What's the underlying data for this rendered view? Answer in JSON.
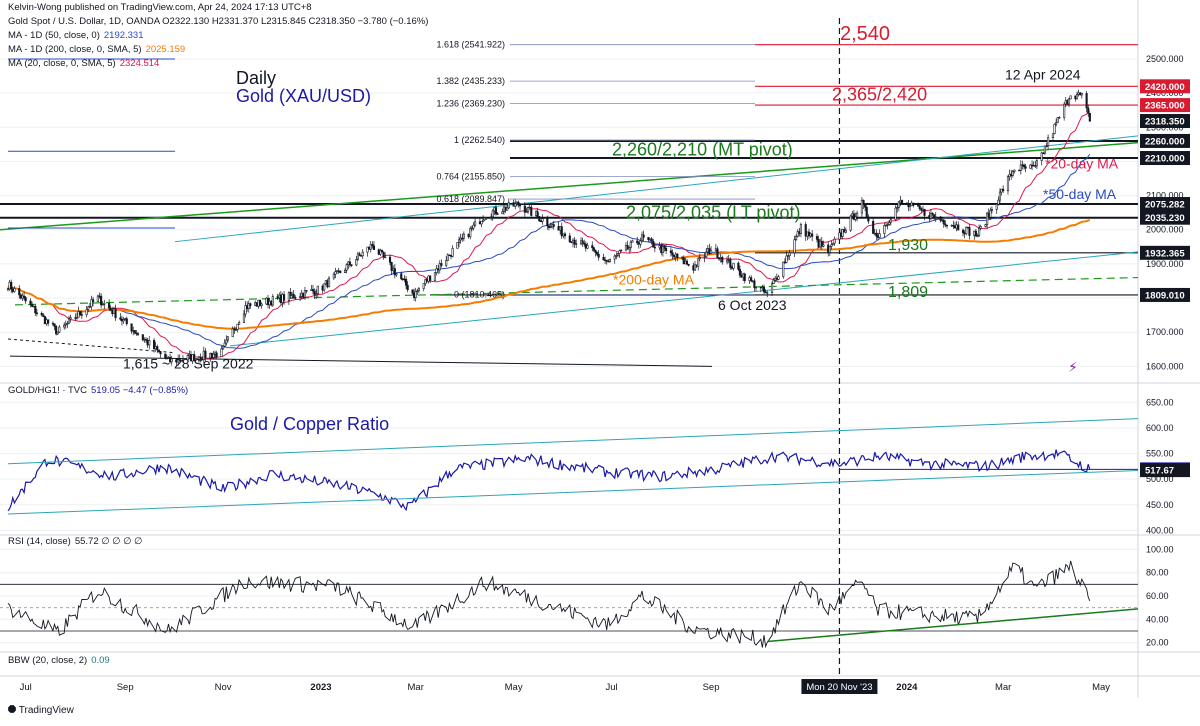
{
  "header": {
    "published": "Kelvin-Wong published on TradingView.com, Apr 24, 2024 17:13 UTC+8",
    "ohlc": "Gold Spot / U.S. Dollar, 1D, OANDA  O2322.130  H2331.370  L2315.845  C2318.350  −3.780 (−0.16%)",
    "ma50_label": "MA - 1D (50, close, 0)",
    "ma50_value": "2192.331",
    "ma200_label": "MA - 1D (200, close, 0, SMA, 5)",
    "ma200_value": "2025.159",
    "ma20_label": "MA (20, close, 0, SMA, 5)",
    "ma20_value": "2324.514",
    "ratio_label": "GOLD/HG1! · TVC",
    "ratio_value": "519.05  −4.47 (−0.85%)",
    "rsi_label": "RSI (14, close)",
    "rsi_value": "55.72  ∅ ∅ ∅ ∅",
    "bbw_label": "BBW (20, close, 2)",
    "bbw_value": "0.09",
    "footer": "TradingView"
  },
  "colors": {
    "candle": "#131722",
    "ma20": "#e0194a",
    "ma50": "#2a4bbd",
    "ma200": "#f57c00",
    "support": "#1b7a1b",
    "resistance": "#d81b31",
    "ratio": "#1a1aa6",
    "channel": "#2aa6b8",
    "rsi": "#131722",
    "price_tag": "#131722"
  },
  "chart_data": [
    {
      "type": "candlestick",
      "title": "Daily",
      "subtitle": "Gold (XAU/USD)",
      "ylim": [
        1560,
        2620
      ],
      "y_ticks": [
        1600,
        1700,
        1800,
        1900,
        2000,
        2100,
        2200,
        2300,
        2400,
        2500
      ],
      "y_tick_labels": [
        "1600.000",
        "1700.000",
        "1800.000",
        "1900.000",
        "2000.000",
        "2100.000",
        "2200.000",
        "2300.000",
        "2400.000",
        "2500.000"
      ],
      "x_ticks": [
        "Jul",
        "Sep",
        "Nov",
        "2023",
        "Mar",
        "May",
        "Jul",
        "Sep",
        "Mon 20 Nov '23",
        "2024",
        "Mar",
        "May"
      ],
      "anchor_points": [
        {
          "date": "2022-06-20",
          "close": 1840
        },
        {
          "date": "2022-07-21",
          "close": 1700
        },
        {
          "date": "2022-08-15",
          "close": 1800
        },
        {
          "date": "2022-09-28",
          "close": 1615
        },
        {
          "date": "2022-10-31",
          "close": 1640
        },
        {
          "date": "2022-11-15",
          "close": 1775
        },
        {
          "date": "2022-12-31",
          "close": 1825
        },
        {
          "date": "2023-02-02",
          "close": 1955
        },
        {
          "date": "2023-02-28",
          "close": 1810
        },
        {
          "date": "2023-04-13",
          "close": 2045
        },
        {
          "date": "2023-05-04",
          "close": 2075
        },
        {
          "date": "2023-06-29",
          "close": 1905
        },
        {
          "date": "2023-07-20",
          "close": 1975
        },
        {
          "date": "2023-08-21",
          "close": 1890
        },
        {
          "date": "2023-09-01",
          "close": 1945
        },
        {
          "date": "2023-10-06",
          "close": 1809
        },
        {
          "date": "2023-10-27",
          "close": 2005
        },
        {
          "date": "2023-11-13",
          "close": 1935
        },
        {
          "date": "2023-12-04",
          "close": 2075
        },
        {
          "date": "2023-12-13",
          "close": 1980
        },
        {
          "date": "2023-12-28",
          "close": 2080
        },
        {
          "date": "2024-02-14",
          "close": 1985
        },
        {
          "date": "2024-03-08",
          "close": 2180
        },
        {
          "date": "2024-03-21",
          "close": 2180
        },
        {
          "date": "2024-04-12",
          "close": 2400
        },
        {
          "date": "2024-04-19",
          "close": 2390
        },
        {
          "date": "2024-04-24",
          "close": 2318.35
        }
      ],
      "price_tags": [
        {
          "value": 2420,
          "label": "2420.000",
          "color": "#d81b31"
        },
        {
          "value": 2365,
          "label": "2365.000",
          "color": "#d81b31"
        },
        {
          "value": 2318.35,
          "label": "2318.350",
          "color": "#131722"
        },
        {
          "value": 2260,
          "label": "2260.000",
          "color": "#131722"
        },
        {
          "value": 2210,
          "label": "2210.000",
          "color": "#131722"
        },
        {
          "value": 2075.282,
          "label": "2075.282",
          "color": "#131722"
        },
        {
          "value": 2035.23,
          "label": "2035.230",
          "color": "#131722"
        },
        {
          "value": 1932.365,
          "label": "1932.365",
          "color": "#131722"
        },
        {
          "value": 1809.01,
          "label": "1809.010",
          "color": "#131722"
        }
      ],
      "fib_levels": [
        {
          "value": 2541.922,
          "label": "1.618 (2541.922)"
        },
        {
          "value": 2435.233,
          "label": "1.382 (2435.233)"
        },
        {
          "value": 2369.23,
          "label": "1.236 (2369.230)"
        },
        {
          "value": 2262.54,
          "label": "1 (2262.540)"
        },
        {
          "value": 2155.85,
          "label": "0.764 (2155.850)"
        },
        {
          "value": 2089.847,
          "label": "0.618 (2089.847)"
        },
        {
          "value": 1810.465,
          "label": "0 (1810.465)"
        }
      ],
      "annotations": [
        {
          "text": "2,540",
          "kind": "resistance"
        },
        {
          "text": "12 Apr 2024",
          "kind": "note"
        },
        {
          "text": "2,365/2,420",
          "kind": "resistance"
        },
        {
          "text": "2,260/2,210 (MT pivot)",
          "kind": "support"
        },
        {
          "text": "*20-day MA",
          "kind": "ma20"
        },
        {
          "text": "*50-day MA",
          "kind": "ma50"
        },
        {
          "text": "2,075/2,035 (LT pivot)",
          "kind": "support"
        },
        {
          "text": "1,930",
          "kind": "support"
        },
        {
          "text": "*200-day MA",
          "kind": "ma200"
        },
        {
          "text": "1,809",
          "kind": "support"
        },
        {
          "text": "6 Oct 2023",
          "kind": "note"
        },
        {
          "text": "1,615 ~ 28 Sep 2022",
          "kind": "note"
        }
      ]
    },
    {
      "type": "line",
      "title": "Gold / Copper Ratio",
      "ylim": [
        395,
        670
      ],
      "y_ticks": [
        400,
        450,
        500,
        550,
        600,
        650
      ],
      "y_tick_labels": [
        "400.00",
        "450.00",
        "500.00",
        "550.00",
        "600.00",
        "650.00"
      ],
      "anchor_points": [
        {
          "date": "2022-06-20",
          "value": 445
        },
        {
          "date": "2022-07-15",
          "value": 540
        },
        {
          "date": "2022-08-25",
          "value": 505
        },
        {
          "date": "2022-09-25",
          "value": 525
        },
        {
          "date": "2022-11-01",
          "value": 480
        },
        {
          "date": "2022-12-01",
          "value": 510
        },
        {
          "date": "2023-01-10",
          "value": 490
        },
        {
          "date": "2023-02-05",
          "value": 470
        },
        {
          "date": "2023-02-25",
          "value": 445
        },
        {
          "date": "2023-03-25",
          "value": 520
        },
        {
          "date": "2023-05-10",
          "value": 540
        },
        {
          "date": "2023-06-25",
          "value": 515
        },
        {
          "date": "2023-08-01",
          "value": 505
        },
        {
          "date": "2023-09-05",
          "value": 520
        },
        {
          "date": "2023-10-10",
          "value": 545
        },
        {
          "date": "2023-11-20",
          "value": 530
        },
        {
          "date": "2023-12-15",
          "value": 545
        },
        {
          "date": "2024-01-15",
          "value": 530
        },
        {
          "date": "2024-02-20",
          "value": 525
        },
        {
          "date": "2024-03-15",
          "value": 545
        },
        {
          "date": "2024-04-05",
          "value": 550
        },
        {
          "date": "2024-04-24",
          "value": 519.05
        }
      ],
      "price_tags": [
        {
          "value": 519.05,
          "label": "519.05",
          "color": "#1a1aa6"
        },
        {
          "value": 517.67,
          "label": "517.67",
          "color": "#131722"
        }
      ]
    },
    {
      "type": "line",
      "title": "",
      "ylim": [
        12,
        108
      ],
      "y_ticks": [
        20,
        40,
        60,
        80,
        100
      ],
      "y_tick_labels": [
        "20.00",
        "40.00",
        "60.00",
        "80.00",
        "100.00"
      ],
      "bands": [
        30,
        70
      ],
      "anchor_points": [
        {
          "date": "2022-06-20",
          "value": 50
        },
        {
          "date": "2022-07-21",
          "value": 28
        },
        {
          "date": "2022-08-15",
          "value": 65
        },
        {
          "date": "2022-09-28",
          "value": 30
        },
        {
          "date": "2022-11-15",
          "value": 73
        },
        {
          "date": "2023-01-10",
          "value": 68
        },
        {
          "date": "2023-02-28",
          "value": 33
        },
        {
          "date": "2023-04-13",
          "value": 72
        },
        {
          "date": "2023-06-29",
          "value": 35
        },
        {
          "date": "2023-07-20",
          "value": 60
        },
        {
          "date": "2023-08-21",
          "value": 32
        },
        {
          "date": "2023-10-06",
          "value": 22
        },
        {
          "date": "2023-10-27",
          "value": 72
        },
        {
          "date": "2023-11-13",
          "value": 48
        },
        {
          "date": "2023-12-04",
          "value": 72
        },
        {
          "date": "2023-12-13",
          "value": 48
        },
        {
          "date": "2024-02-14",
          "value": 40
        },
        {
          "date": "2024-03-08",
          "value": 85
        },
        {
          "date": "2024-03-21",
          "value": 66
        },
        {
          "date": "2024-04-12",
          "value": 85
        },
        {
          "date": "2024-04-19",
          "value": 68
        },
        {
          "date": "2024-04-24",
          "value": 55.72
        }
      ]
    }
  ]
}
